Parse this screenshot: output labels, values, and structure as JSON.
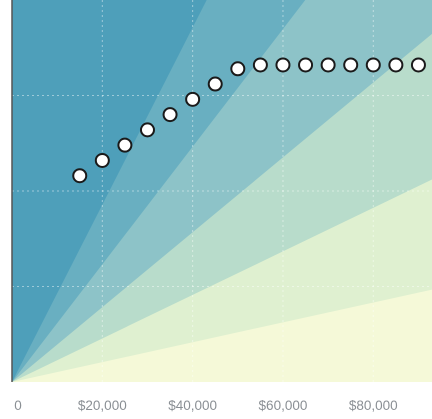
{
  "chart_data": {
    "type": "scatter",
    "title": "",
    "xlabel": "",
    "ylabel": "",
    "x_ticks": [
      {
        "value": 0,
        "label": "0"
      },
      {
        "value": 20000,
        "label": "$20,000"
      },
      {
        "value": 40000,
        "label": "$40,000"
      },
      {
        "value": 60000,
        "label": "$60,000"
      },
      {
        "value": 80000,
        "label": "$80,000"
      }
    ],
    "xlim": [
      0,
      93000
    ],
    "ylim": [
      0,
      100
    ],
    "grid": true,
    "y_gridlines": [
      25,
      50,
      75
    ],
    "x_gridlines": [
      20000,
      40000,
      60000,
      80000
    ],
    "background_bands": {
      "description": "fan of bands radiating from the origin, bounded by lines y = k * x",
      "slopes_per_10000": [
        0,
        2.6,
        5.7,
        9.8,
        15.4,
        23.2
      ],
      "colors": [
        "#f5f9d8",
        "#dff0d0",
        "#b8dccb",
        "#8dc3c8",
        "#69afc1",
        "#4e9fba"
      ]
    },
    "series": [
      {
        "x": [
          15000,
          20000,
          25000,
          30000,
          35000,
          40000,
          45000,
          50000,
          55000,
          60000,
          65000,
          70000,
          75000,
          80000,
          85000,
          90000
        ],
        "y": [
          54,
          58,
          62,
          66,
          70,
          74,
          78,
          82,
          83,
          83,
          83,
          83,
          83,
          83,
          83,
          83
        ],
        "marker_fill": "#ffffff",
        "marker_edge": "#1a1a1a"
      }
    ],
    "axis_color": "#555555"
  }
}
